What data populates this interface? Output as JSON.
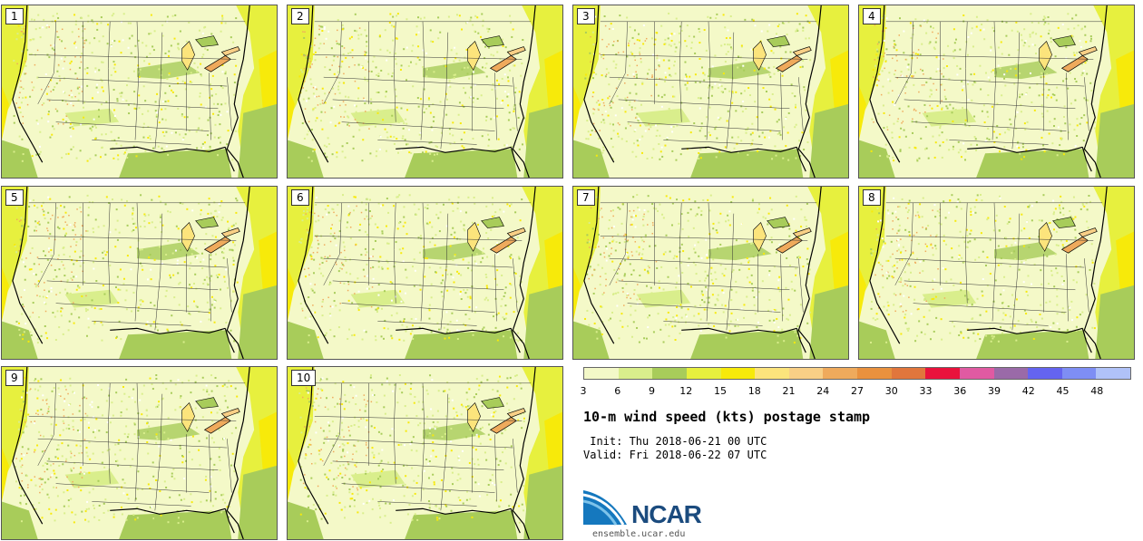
{
  "panels": [
    {
      "label": "1"
    },
    {
      "label": "2"
    },
    {
      "label": "3"
    },
    {
      "label": "4"
    },
    {
      "label": "5"
    },
    {
      "label": "6"
    },
    {
      "label": "7"
    },
    {
      "label": "8"
    },
    {
      "label": "9"
    },
    {
      "label": "10"
    }
  ],
  "legend": {
    "colors": [
      "#f3f8c8",
      "#d9ee8c",
      "#a8cc5a",
      "#e7f03e",
      "#f7ea0a",
      "#fce47c",
      "#f8cf86",
      "#efaa5c",
      "#e9913e",
      "#e1763c",
      "#e9123c",
      "#e05aa2",
      "#9a6aa8",
      "#6464f0",
      "#7e8ef4",
      "#b0c2f8"
    ],
    "ticks": [
      "3",
      "6",
      "9",
      "12",
      "15",
      "18",
      "21",
      "24",
      "27",
      "30",
      "33",
      "36",
      "39",
      "42",
      "45",
      "48"
    ]
  },
  "title": "10-m wind speed (kts) postage stamp",
  "init": " Init: Thu 2018-06-21 00 UTC",
  "valid": "Valid: Fri 2018-06-22 07 UTC",
  "logo": {
    "text": "NCAR",
    "url_text": "ensemble.ucar.edu"
  },
  "map_colors": {
    "land": "#f4f9c8",
    "land_patch": "#d9ee8c",
    "green": "#a8cc5a",
    "ocean_yellow": "#e7f03e",
    "bright": "#f7ea0a",
    "orange": "#efaa5c",
    "border": "#333333",
    "coast": "#000000"
  }
}
